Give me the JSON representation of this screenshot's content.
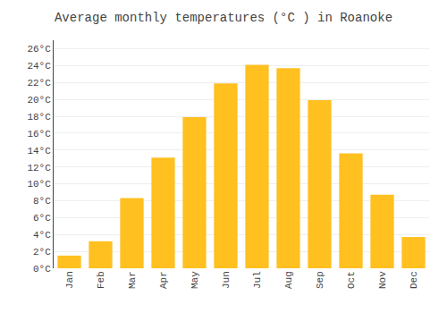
{
  "chart_data": {
    "type": "bar",
    "title": "Average monthly temperatures (°C ) in Roanoke",
    "categories": [
      "Jan",
      "Feb",
      "Mar",
      "Apr",
      "May",
      "Jun",
      "Jul",
      "Aug",
      "Sep",
      "Oct",
      "Nov",
      "Dec"
    ],
    "values": [
      1.5,
      3.2,
      8.3,
      13.1,
      17.9,
      21.9,
      24.1,
      23.7,
      19.9,
      13.6,
      8.7,
      3.7
    ],
    "color": "#FFC020",
    "ylim": [
      0,
      27
    ],
    "yticks": [
      {
        "value": 0,
        "label": "0°C"
      },
      {
        "value": 2,
        "label": "2°C"
      },
      {
        "value": 4,
        "label": "4°C"
      },
      {
        "value": 6,
        "label": "6°C"
      },
      {
        "value": 8,
        "label": "8°C"
      },
      {
        "value": 10,
        "label": "10°C"
      },
      {
        "value": 12,
        "label": "12°C"
      },
      {
        "value": 14,
        "label": "14°C"
      },
      {
        "value": 16,
        "label": "16°C"
      },
      {
        "value": 18,
        "label": "18°C"
      },
      {
        "value": 20,
        "label": "20°C"
      },
      {
        "value": 22,
        "label": "22°C"
      },
      {
        "value": 24,
        "label": "24°C"
      },
      {
        "value": 26,
        "label": "26°C"
      }
    ],
    "grid": true
  }
}
